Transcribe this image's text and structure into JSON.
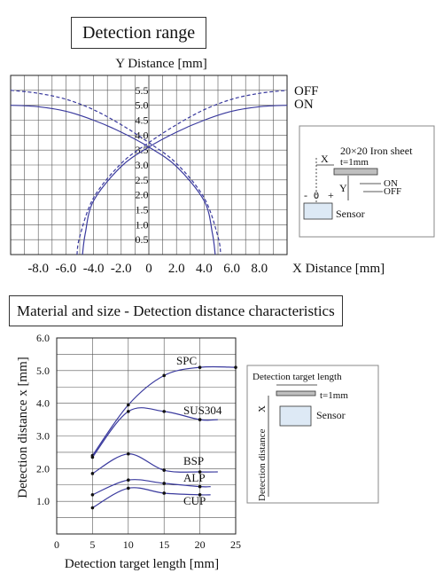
{
  "colors": {
    "curve": "#3a3a9e",
    "grid": "#555555",
    "inset_fill": "#dde9f5",
    "sheet_fill": "#bfbfbf"
  },
  "chart_data": [
    {
      "type": "line",
      "title": "Detection range",
      "ylabel": "Y Distance [mm]",
      "xlabel": "X Distance [mm]",
      "xlim": [
        -10,
        10
      ],
      "ylim": [
        0,
        6
      ],
      "grid": true,
      "x_tick_labels": [
        "-8.0",
        "-6.0",
        "-4.0",
        "-2.0",
        "0",
        "2.0",
        "4.0",
        "6.0",
        "8.0"
      ],
      "y_tick_labels": [
        "0.5",
        "1.0",
        "1.5",
        "2.0",
        "2.5",
        "3.0",
        "3.5",
        "4.0",
        "4.5",
        "5.0",
        "5.5"
      ],
      "series": [
        {
          "name": "OFF",
          "style": "dashed",
          "x": [
            -10,
            -8,
            -6,
            -4,
            -2,
            0,
            2,
            4,
            5.0,
            5.2
          ],
          "y": [
            5.5,
            5.4,
            5.2,
            4.85,
            4.35,
            3.75,
            3.05,
            1.9,
            0.6,
            0
          ]
        },
        {
          "name": "ON",
          "style": "solid",
          "x": [
            -10,
            -8,
            -6,
            -4,
            -2,
            0,
            2,
            4,
            4.6,
            4.8
          ],
          "y": [
            5.0,
            4.95,
            4.8,
            4.5,
            4.1,
            3.6,
            2.95,
            1.8,
            0.7,
            0
          ]
        },
        {
          "name": "OFF",
          "style": "dashed",
          "mirror": true,
          "x": [
            -5.2,
            -5.0,
            -4,
            -2,
            0,
            2,
            4,
            6,
            8,
            10
          ],
          "y": [
            0,
            0.6,
            1.9,
            3.05,
            3.75,
            4.35,
            4.85,
            5.2,
            5.4,
            5.5
          ]
        },
        {
          "name": "ON",
          "style": "solid",
          "mirror": true,
          "x": [
            -4.8,
            -4.6,
            -4,
            -2,
            0,
            2,
            4,
            6,
            8,
            10
          ],
          "y": [
            0,
            0.7,
            1.8,
            2.95,
            3.6,
            4.1,
            4.5,
            4.8,
            4.95,
            5.0
          ]
        }
      ],
      "legend": [
        "OFF",
        "ON"
      ]
    },
    {
      "type": "line",
      "title": "Material and size - Detection distance characteristics",
      "xlabel": "Detection target length [mm]",
      "ylabel": "Detection distance x [mm]",
      "xlim": [
        0,
        25
      ],
      "ylim": [
        0,
        6
      ],
      "grid": true,
      "x_tick_labels": [
        "0",
        "5",
        "10",
        "15",
        "20",
        "25"
      ],
      "y_tick_labels": [
        "1.0",
        "2.0",
        "3.0",
        "4.0",
        "5.0",
        "6.0"
      ],
      "series": [
        {
          "name": "SPC",
          "x": [
            5,
            10,
            15,
            20,
            25
          ],
          "y": [
            2.4,
            3.95,
            4.85,
            5.1,
            5.1
          ]
        },
        {
          "name": "SUS304",
          "x": [
            5,
            10,
            15,
            20,
            22.5
          ],
          "y": [
            2.35,
            3.75,
            3.75,
            3.5,
            3.5
          ]
        },
        {
          "name": "BSP",
          "x": [
            5,
            10,
            15,
            20,
            22.5
          ],
          "y": [
            1.85,
            2.45,
            1.95,
            1.9,
            1.9
          ]
        },
        {
          "name": "ALP",
          "x": [
            5,
            10,
            15,
            20,
            21.5
          ],
          "y": [
            1.2,
            1.65,
            1.55,
            1.45,
            1.45
          ]
        },
        {
          "name": "CUP",
          "x": [
            5,
            10,
            15,
            20,
            21.5
          ],
          "y": [
            0.8,
            1.4,
            1.25,
            1.2,
            1.2
          ]
        }
      ]
    }
  ],
  "inset1": {
    "sheet_label": "20×20 Iron sheet",
    "t_label": "t=1mm",
    "x_label": "X",
    "y_label": "Y",
    "minus": "-",
    "zero": "0",
    "plus": "+",
    "on_label": "ON",
    "off_label": "OFF",
    "sensor_label": "Sensor"
  },
  "inset2": {
    "target_label": "Detection target length",
    "t_label": "t=1mm",
    "x_label": "X",
    "sensor_label": "Sensor"
  }
}
